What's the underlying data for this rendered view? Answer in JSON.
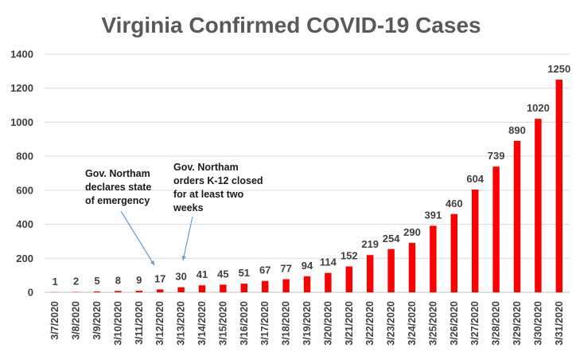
{
  "chart_data": {
    "type": "bar",
    "title": "Virginia Confirmed COVID-19 Cases",
    "xlabel": "",
    "ylabel": "",
    "ylim": [
      0,
      1400
    ],
    "yticks": [
      "0",
      "200",
      "400",
      "600",
      "800",
      "1000",
      "1200",
      "1400"
    ],
    "grid": true,
    "bar_color": "#ff0000",
    "categories": [
      "3/7/2020",
      "3/8/2020",
      "3/9/2020",
      "3/10/2020",
      "3/11/2020",
      "3/12/2020",
      "3/13/2020",
      "3/14/2020",
      "3/15/2020",
      "3/16/2020",
      "3/17/2020",
      "3/18/2020",
      "3/19/2020",
      "3/20/2020",
      "3/21/2020",
      "3/22/2020",
      "3/23/2020",
      "3/24/2020",
      "3/25/2020",
      "3/26/2020",
      "3/27/2020",
      "3/28/2020",
      "3/29/2020",
      "3/30/2020",
      "3/31/2020"
    ],
    "values": [
      1,
      2,
      5,
      8,
      9,
      17,
      30,
      41,
      45,
      51,
      67,
      77,
      94,
      114,
      152,
      219,
      254,
      290,
      391,
      460,
      604,
      739,
      890,
      1020,
      1250
    ],
    "annotations": [
      {
        "lines": [
          "Gov. Northam",
          "declares state",
          "of emergency"
        ],
        "category": "3/12/2020"
      },
      {
        "lines": [
          "Gov. Northam",
          "orders K-12 closed",
          "for at least two",
          "weeks"
        ],
        "category": "3/13/2020"
      }
    ]
  }
}
